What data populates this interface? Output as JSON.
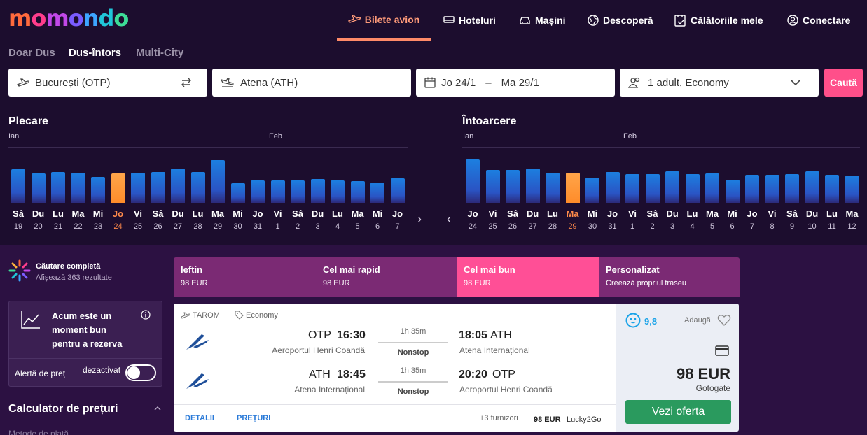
{
  "brand": {
    "logo": "momondo"
  },
  "nav": [
    {
      "label": "Bilete avion",
      "icon": "plane-icon",
      "active": true
    },
    {
      "label": "Hoteluri",
      "icon": "bed-icon"
    },
    {
      "label": "Mașini",
      "icon": "car-icon"
    },
    {
      "label": "Descoperă",
      "icon": "globe-icon"
    },
    {
      "label": "Călătoriile mele",
      "icon": "trips-icon"
    },
    {
      "label": "Conectare",
      "icon": "user-icon"
    }
  ],
  "trip_types": [
    {
      "label": "Doar Dus"
    },
    {
      "label": "Dus-întors",
      "selected": true
    },
    {
      "label": "Multi-City"
    }
  ],
  "search": {
    "origin": "București (OTP)",
    "destination": "Atena (ATH)",
    "date_from": "Jo 24/1",
    "date_sep": "–",
    "date_to": "Ma 29/1",
    "travelers": "1 adult, Economy",
    "button": "Caută"
  },
  "calendar": {
    "departure": {
      "title": "Plecare",
      "month1": "Ian",
      "month2": "Feb",
      "days": [
        {
          "d": "Sâ",
          "n": "19",
          "h": 48
        },
        {
          "d": "Du",
          "n": "20",
          "h": 42
        },
        {
          "d": "Lu",
          "n": "21",
          "h": 44
        },
        {
          "d": "Ma",
          "n": "22",
          "h": 43
        },
        {
          "d": "Mi",
          "n": "23",
          "h": 37
        },
        {
          "d": "Jo",
          "n": "24",
          "h": 42,
          "sel": true
        },
        {
          "d": "Vi",
          "n": "25",
          "h": 43
        },
        {
          "d": "Sâ",
          "n": "26",
          "h": 44
        },
        {
          "d": "Du",
          "n": "27",
          "h": 49
        },
        {
          "d": "Lu",
          "n": "28",
          "h": 44
        },
        {
          "d": "Ma",
          "n": "29",
          "h": 61
        },
        {
          "d": "Mi",
          "n": "30",
          "h": 28
        },
        {
          "d": "Jo",
          "n": "31",
          "h": 32
        },
        {
          "d": "Vi",
          "n": "1",
          "h": 32
        },
        {
          "d": "Sâ",
          "n": "2",
          "h": 32
        },
        {
          "d": "Du",
          "n": "3",
          "h": 34
        },
        {
          "d": "Lu",
          "n": "4",
          "h": 32
        },
        {
          "d": "Ma",
          "n": "5",
          "h": 31
        },
        {
          "d": "Mi",
          "n": "6",
          "h": 29
        },
        {
          "d": "Jo",
          "n": "7",
          "h": 35
        }
      ]
    },
    "return": {
      "title": "Întoarcere",
      "month1": "Ian",
      "month2": "Feb",
      "days": [
        {
          "d": "Jo",
          "n": "24",
          "h": 62
        },
        {
          "d": "Vi",
          "n": "25",
          "h": 47
        },
        {
          "d": "Sâ",
          "n": "26",
          "h": 47
        },
        {
          "d": "Du",
          "n": "27",
          "h": 49
        },
        {
          "d": "Lu",
          "n": "28",
          "h": 43
        },
        {
          "d": "Ma",
          "n": "29",
          "h": 43,
          "sel": true
        },
        {
          "d": "Mi",
          "n": "30",
          "h": 36
        },
        {
          "d": "Jo",
          "n": "31",
          "h": 44
        },
        {
          "d": "Vi",
          "n": "1",
          "h": 41
        },
        {
          "d": "Sâ",
          "n": "2",
          "h": 41
        },
        {
          "d": "Du",
          "n": "3",
          "h": 45
        },
        {
          "d": "Lu",
          "n": "4",
          "h": 41
        },
        {
          "d": "Ma",
          "n": "5",
          "h": 42
        },
        {
          "d": "Mi",
          "n": "6",
          "h": 33
        },
        {
          "d": "Jo",
          "n": "7",
          "h": 40
        },
        {
          "d": "Vi",
          "n": "8",
          "h": 40
        },
        {
          "d": "Sâ",
          "n": "9",
          "h": 41
        },
        {
          "d": "Du",
          "n": "10",
          "h": 45
        },
        {
          "d": "Lu",
          "n": "11",
          "h": 40
        },
        {
          "d": "Ma",
          "n": "12",
          "h": 39
        }
      ]
    }
  },
  "status": {
    "title": "Căutare completă",
    "subtitle": "Afișează 363 rezultate"
  },
  "price_alert": {
    "text": "Acum este un moment bun pentru a rezerva",
    "label": "Alertă de preț",
    "state": "dezactivat"
  },
  "calculator": {
    "title": "Calculator de prețuri",
    "sub": "Metode de plată"
  },
  "sort_tabs": [
    {
      "title": "Ieftin",
      "sub": "98 EUR"
    },
    {
      "title": "Cel mai rapid",
      "sub": "98 EUR"
    },
    {
      "title": "Cel mai bun",
      "sub": "98 EUR",
      "selected": true
    },
    {
      "title": "Personalizat",
      "sub": "Creează propriul traseu"
    }
  ],
  "result": {
    "airline": "TAROM",
    "cabin": "Economy",
    "legs": [
      {
        "from_code": "OTP",
        "dep": "16:30",
        "duration": "1h 35m",
        "stops": "Nonstop",
        "arr": "18:05",
        "to_code": "ATH",
        "from_airport": "Aeroportul Henri Coandă",
        "to_airport": "Atena Internațional"
      },
      {
        "from_code": "ATH",
        "dep": "18:45",
        "duration": "1h 35m",
        "stops": "Nonstop",
        "arr": "20:20",
        "to_code": "OTP",
        "from_airport": "Atena Internațional",
        "to_airport": "Aeroportul Henri Coandă"
      }
    ],
    "details": "DETALII",
    "prices_link": "PREȚURI",
    "providers": "+3 furnizori",
    "alt_price": "98 EUR",
    "alt_provider": "Lucky2Go",
    "score": "9,8",
    "add": "Adaugă",
    "price": "98 EUR",
    "provider": "Gotogate",
    "cta": "Vezi oferta"
  }
}
